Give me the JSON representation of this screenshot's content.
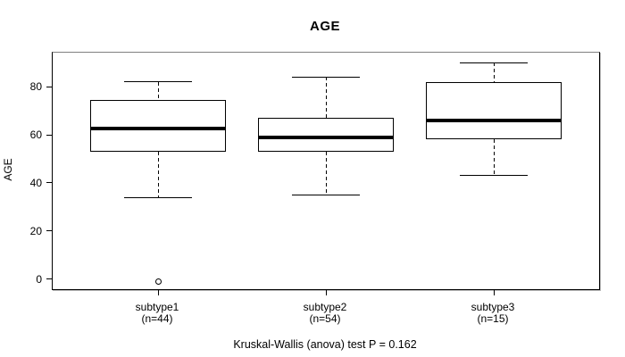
{
  "chart_data": {
    "type": "boxplot",
    "title": "AGE",
    "ylabel": "AGE",
    "xlabel": "",
    "categories": [
      "subtype1",
      "subtype2",
      "subtype3"
    ],
    "category_sublabels": [
      "(n=44)",
      "(n=54)",
      "(n=15)"
    ],
    "series": [
      {
        "name": "subtype1",
        "whisker_low": 34,
        "q1": 53,
        "median": 62.5,
        "q3": 74.5,
        "whisker_high": 82,
        "outliers": [
          -1
        ]
      },
      {
        "name": "subtype2",
        "whisker_low": 35,
        "q1": 53,
        "median": 59,
        "q3": 67,
        "whisker_high": 84,
        "outliers": []
      },
      {
        "name": "subtype3",
        "whisker_low": 43,
        "q1": 58,
        "median": 66,
        "q3": 82,
        "whisker_high": 90,
        "outliers": []
      }
    ],
    "yticks": [
      0,
      20,
      40,
      60,
      80
    ],
    "ylim": [
      -4.1,
      94.1
    ],
    "grid": false,
    "legend": "none",
    "annotations": [
      "Kruskal-Wallis (anova) test P = 0.162"
    ]
  }
}
